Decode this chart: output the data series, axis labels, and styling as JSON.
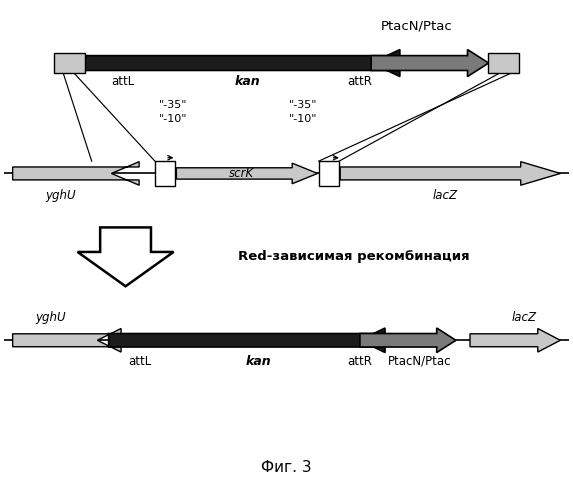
{
  "fig_width": 5.73,
  "fig_height": 4.99,
  "dpi": 100,
  "bg_color": "#ffffff",
  "top_label": "PtacN/Ptac",
  "middle_text": "Red-зависимая рекомбинация",
  "fig_label": "Фиг. 3",
  "dark": "#1c1c1c",
  "med_gray": "#7a7a7a",
  "light_gray": "#c8c8c8",
  "white": "#ffffff",
  "black": "#000000"
}
